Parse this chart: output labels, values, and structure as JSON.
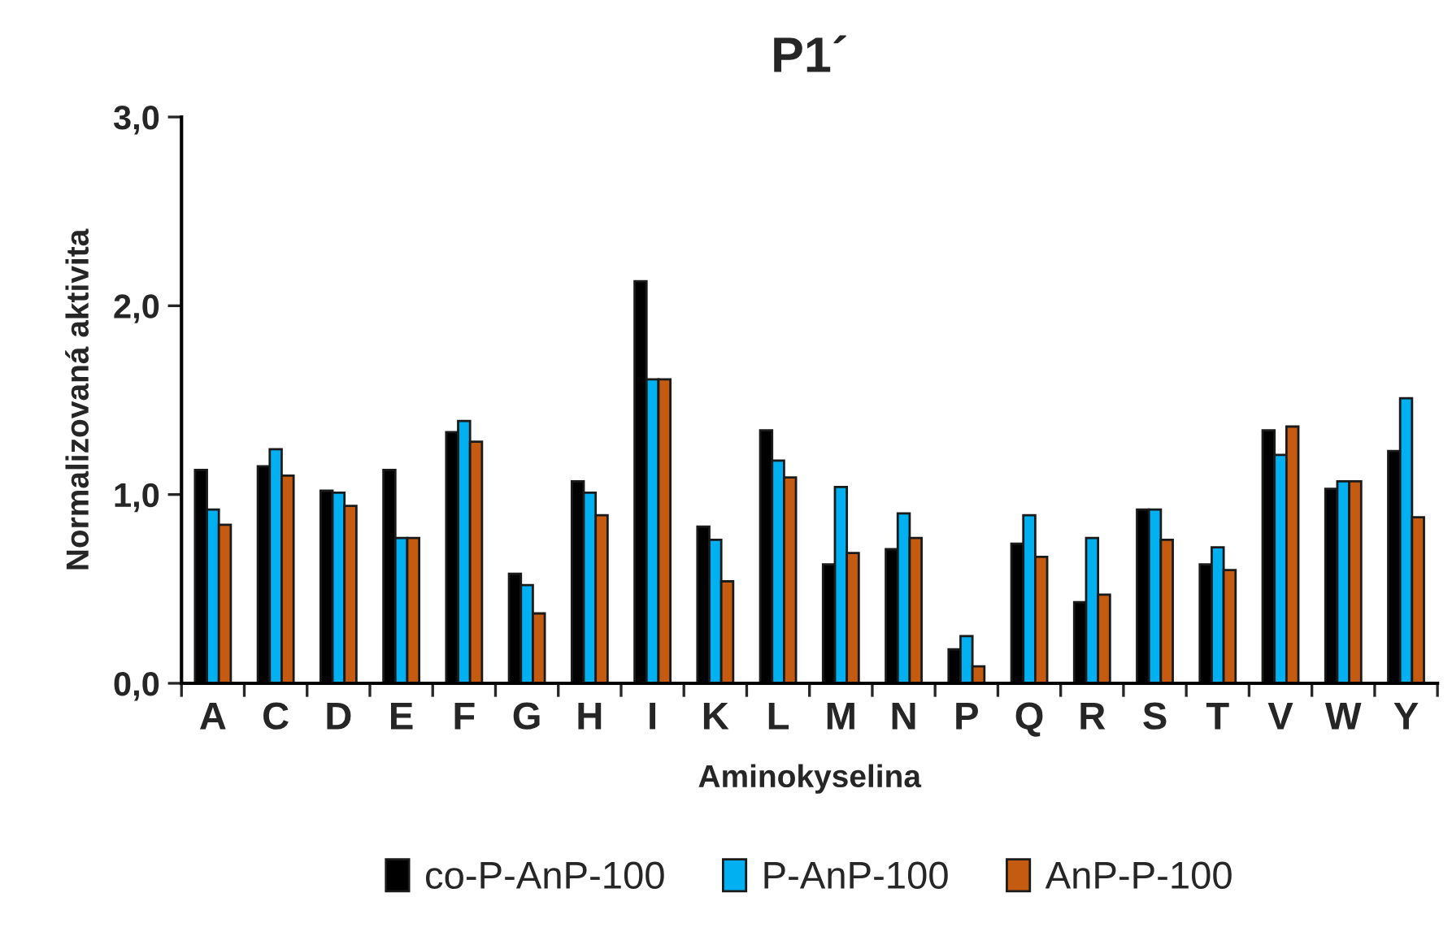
{
  "chart_data": {
    "type": "bar",
    "title": "P1´",
    "xlabel": "Aminokyselina",
    "ylabel": "Normalizovaná aktivita",
    "categories": [
      "A",
      "C",
      "D",
      "E",
      "F",
      "G",
      "H",
      "I",
      "K",
      "L",
      "M",
      "N",
      "P",
      "Q",
      "R",
      "S",
      "T",
      "V",
      "W",
      "Y"
    ],
    "series": [
      {
        "name": "co-P-AnP-100",
        "color": "#000000",
        "values": [
          1.13,
          1.15,
          1.02,
          1.13,
          1.33,
          0.58,
          1.07,
          2.13,
          0.83,
          1.34,
          0.63,
          0.71,
          0.18,
          0.74,
          0.43,
          0.92,
          0.63,
          1.34,
          1.03,
          1.23
        ]
      },
      {
        "name": "P-AnP-100",
        "color": "#00b0f0",
        "values": [
          0.92,
          1.24,
          1.01,
          0.77,
          1.39,
          0.52,
          1.01,
          1.61,
          0.76,
          1.18,
          1.04,
          0.9,
          0.25,
          0.89,
          0.77,
          0.92,
          0.72,
          1.21,
          1.07,
          1.51
        ]
      },
      {
        "name": "AnP-P-100",
        "color": "#c55a11",
        "values": [
          0.84,
          1.1,
          0.94,
          0.77,
          1.28,
          0.37,
          0.89,
          1.61,
          0.54,
          1.09,
          0.69,
          0.77,
          0.09,
          0.67,
          0.47,
          0.76,
          0.6,
          1.36,
          1.07,
          0.88
        ]
      }
    ],
    "ylim": [
      0,
      3
    ],
    "yticks": [
      {
        "value": 0,
        "label": "0,0"
      },
      {
        "value": 1,
        "label": "1,0"
      },
      {
        "value": 2,
        "label": "2,0"
      },
      {
        "value": 3,
        "label": "3,0"
      }
    ],
    "grid": false,
    "legend": "bottom"
  }
}
